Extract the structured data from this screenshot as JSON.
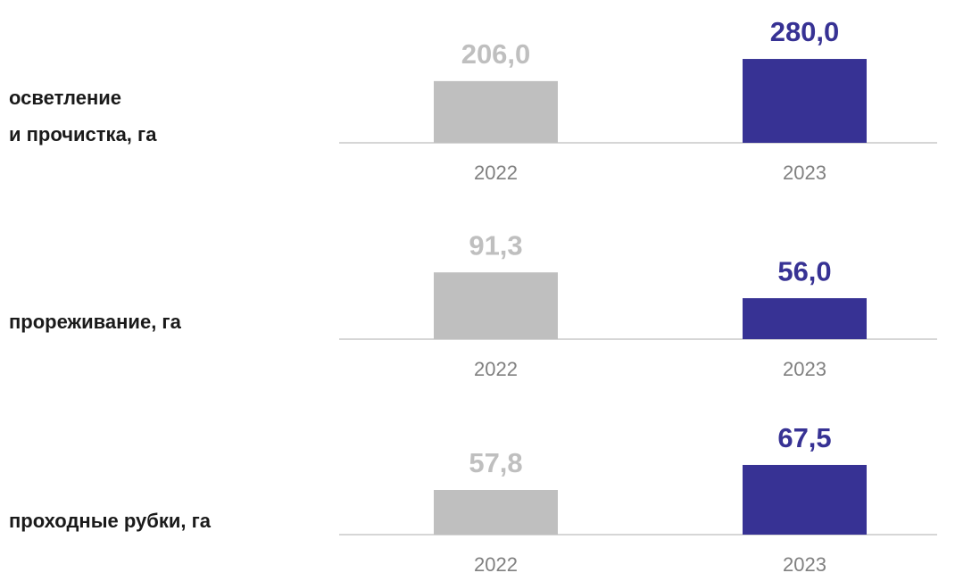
{
  "chart_data": [
    {
      "type": "bar",
      "title": [
        "осветление",
        "и прочистка, га"
      ],
      "categories": [
        "2022",
        "2023"
      ],
      "values": [
        206.0,
        280.0
      ],
      "value_labels": [
        "206,0",
        "280,0"
      ],
      "colors": [
        "#bfbfbf",
        "#373294"
      ],
      "ylim": [
        0,
        298
      ]
    },
    {
      "type": "bar",
      "title": [
        "прореживание, га"
      ],
      "categories": [
        "2022",
        "2023"
      ],
      "values": [
        91.3,
        56.0
      ],
      "value_labels": [
        "91,3",
        "56,0"
      ],
      "colors": [
        "#bfbfbf",
        "#373294"
      ],
      "ylim": [
        0,
        122
      ]
    },
    {
      "type": "bar",
      "title": [
        "проходные рубки, га"
      ],
      "categories": [
        "2022",
        "2023"
      ],
      "values": [
        57.8,
        67.5
      ],
      "value_labels": [
        "57,8",
        "67,5"
      ],
      "colors": [
        "#bfbfbf",
        "#373294"
      ],
      "ylim": [
        40.5,
        75.1
      ]
    }
  ]
}
